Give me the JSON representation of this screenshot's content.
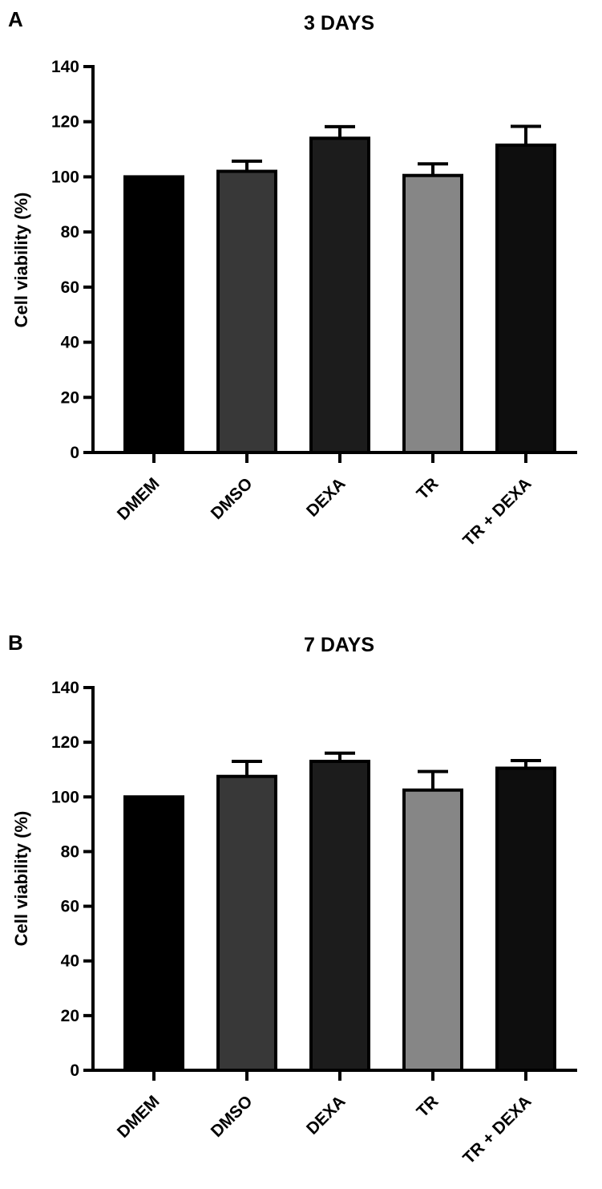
{
  "chart_data": [
    {
      "type": "bar",
      "panel_label": "A",
      "title": "3 DAYS",
      "ylabel": "Cell viability (%)",
      "xlabel": "",
      "ylim": [
        0,
        140
      ],
      "yticks": [
        0,
        20,
        40,
        60,
        80,
        100,
        120,
        140
      ],
      "grid": false,
      "categories": [
        "DMEM",
        "DMSO",
        "DEXA",
        "TR",
        "TR + DEXA"
      ],
      "values": [
        100,
        102,
        114,
        100.5,
        111.5
      ],
      "error_upper": [
        0,
        3.7,
        4.2,
        4.2,
        6.8
      ],
      "bar_colors": [
        "#000000",
        "#383838",
        "#1c1c1c",
        "#868686",
        "#0e0e0e"
      ]
    },
    {
      "type": "bar",
      "panel_label": "B",
      "title": "7 DAYS",
      "ylabel": "Cell viability (%)",
      "xlabel": "",
      "ylim": [
        0,
        140
      ],
      "yticks": [
        0,
        20,
        40,
        60,
        80,
        100,
        120,
        140
      ],
      "grid": false,
      "categories": [
        "DMEM",
        "DMSO",
        "DEXA",
        "TR",
        "TR + DEXA"
      ],
      "values": [
        100,
        107.5,
        113,
        102.5,
        110.5
      ],
      "error_upper": [
        0,
        5.5,
        3.0,
        6.8,
        2.8
      ],
      "bar_colors": [
        "#000000",
        "#383838",
        "#1c1c1c",
        "#868686",
        "#0e0e0e"
      ]
    }
  ]
}
